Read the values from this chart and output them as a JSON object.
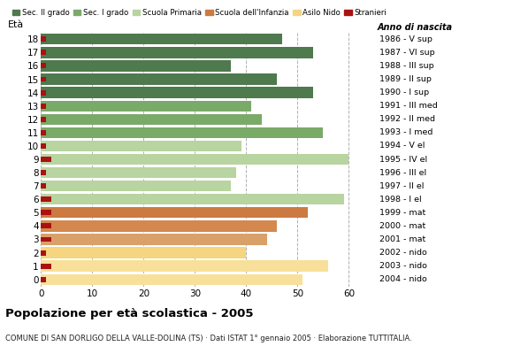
{
  "ages": [
    18,
    17,
    16,
    15,
    14,
    13,
    12,
    11,
    10,
    9,
    8,
    7,
    6,
    5,
    4,
    3,
    2,
    1,
    0
  ],
  "values": [
    47,
    53,
    37,
    46,
    53,
    41,
    43,
    55,
    39,
    60,
    38,
    37,
    59,
    52,
    46,
    44,
    40,
    56,
    51
  ],
  "stranieri": [
    1,
    1,
    1,
    1,
    1,
    1,
    1,
    1,
    1,
    2,
    1,
    1,
    2,
    2,
    2,
    2,
    1,
    2,
    1
  ],
  "right_labels": [
    "1986 - V sup",
    "1987 - VI sup",
    "1988 - III sup",
    "1989 - II sup",
    "1990 - I sup",
    "1991 - III med",
    "1992 - II med",
    "1993 - I med",
    "1994 - V el",
    "1995 - IV el",
    "1996 - III el",
    "1997 - II el",
    "1998 - I el",
    "1999 - mat",
    "2000 - mat",
    "2001 - mat",
    "2002 - nido",
    "2003 - nido",
    "2004 - nido"
  ],
  "colors": {
    "sec2": "#4e7a4e",
    "sec1": "#7aaa68",
    "primaria": "#b8d4a0",
    "infanzia_dark": "#cc7a42",
    "infanzia_mid": "#d4884e",
    "infanzia_light": "#d9a06a",
    "nido_light": "#f5d580",
    "nido_lighter": "#f8e09a",
    "stranieri": "#aa1111"
  },
  "bar_color_keys": [
    "sec2",
    "sec2",
    "sec2",
    "sec2",
    "sec2",
    "sec1",
    "sec1",
    "sec1",
    "primaria",
    "primaria",
    "primaria",
    "primaria",
    "primaria",
    "infanzia_dark",
    "infanzia_mid",
    "infanzia_light",
    "nido_light",
    "nido_lighter",
    "nido_lighter"
  ],
  "legend_labels": [
    "Sec. II grado",
    "Sec. I grado",
    "Scuola Primaria",
    "Scuola dell'Infanzia",
    "Asilo Nido",
    "Stranieri"
  ],
  "legend_colors": [
    "#4e7a4e",
    "#7aaa68",
    "#b8d4a0",
    "#cc7a42",
    "#f5d580",
    "#aa1111"
  ],
  "title": "Popolazione per età scolastica - 2005",
  "subtitle": "COMUNE DI SAN DORLIGO DELLA VALLE-DOLINA (TS) · Dati ISTAT 1° gennaio 2005 · Elaborazione TUTTITALIA.",
  "xlim": [
    0,
    65
  ],
  "xticks": [
    0,
    10,
    20,
    30,
    40,
    50,
    60
  ],
  "figsize": [
    5.8,
    4.0
  ],
  "dpi": 100,
  "background_color": "#ffffff"
}
